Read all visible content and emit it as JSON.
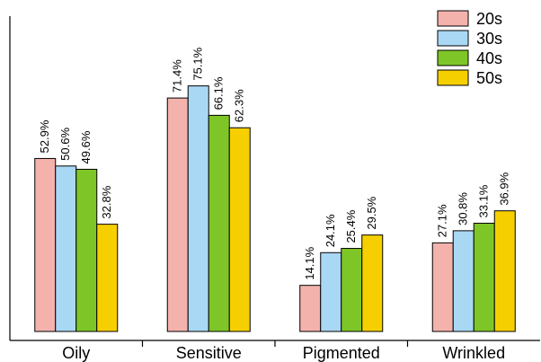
{
  "chart_data": {
    "type": "bar",
    "categories": [
      "Oily",
      "Sensitive",
      "Pigmented",
      "Wrinkled"
    ],
    "series": [
      {
        "name": "20s",
        "color": "#f4b2ad",
        "values": [
          52.9,
          71.4,
          14.1,
          27.1
        ],
        "labels": [
          "52.9%",
          "71.4%",
          "14.1%",
          "27.1%"
        ]
      },
      {
        "name": "30s",
        "color": "#a9d8f5",
        "values": [
          50.6,
          75.1,
          24.1,
          30.8
        ],
        "labels": [
          "50.6%",
          "75.1%",
          "24.1%",
          "30.8%"
        ]
      },
      {
        "name": "40s",
        "color": "#7ec627",
        "values": [
          49.6,
          66.1,
          25.4,
          33.1
        ],
        "labels": [
          "49.6%",
          "66.1%",
          "25.4%",
          "33.1%"
        ]
      },
      {
        "name": "50s",
        "color": "#f6cf00",
        "values": [
          32.8,
          62.3,
          29.5,
          36.9
        ],
        "labels": [
          "32.8%",
          "62.3%",
          "29.5%",
          "36.9%"
        ]
      }
    ],
    "ylim": [
      0,
      100
    ],
    "legend": "top-right",
    "grid": false
  }
}
